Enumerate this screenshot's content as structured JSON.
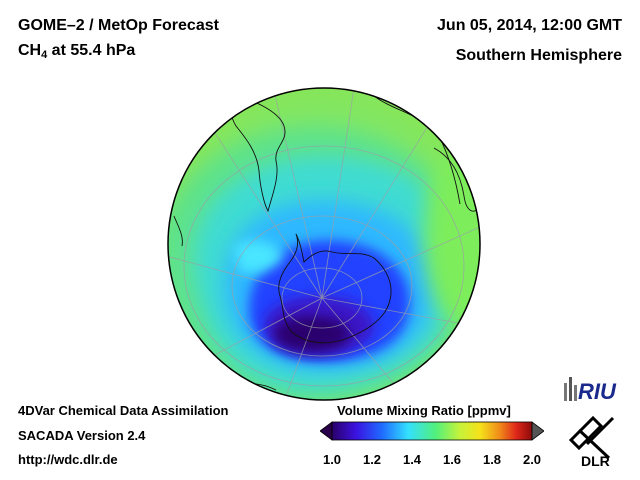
{
  "header": {
    "title_line1": "GOME–2 / MetOp Forecast",
    "species_main": "CH",
    "species_sub": "4",
    "species_rest": " at 55.4 hPa",
    "datetime": "Jun 05, 2014, 12:00 GMT",
    "hemisphere": "Southern Hemisphere"
  },
  "footer": {
    "line1": "4DVar Chemical Data Assimilation",
    "line2": "SACADA Version 2.4",
    "line3": "http://wdc.dlr.de"
  },
  "colorbar": {
    "title": "Volume Mixing Ratio [ppmv]",
    "ticks": [
      "1.0",
      "1.2",
      "1.4",
      "1.6",
      "1.8",
      "2.0"
    ],
    "min": 1.0,
    "max": 2.0
  },
  "logos": {
    "riu": "RIU",
    "dlr": "DLR"
  },
  "colors": {
    "low": "#2a0068",
    "blue": "#1f4fff",
    "cyan": "#33e0ff",
    "green": "#6cf070",
    "yellow": "#f5e21a",
    "high": "#8b0a0a"
  }
}
